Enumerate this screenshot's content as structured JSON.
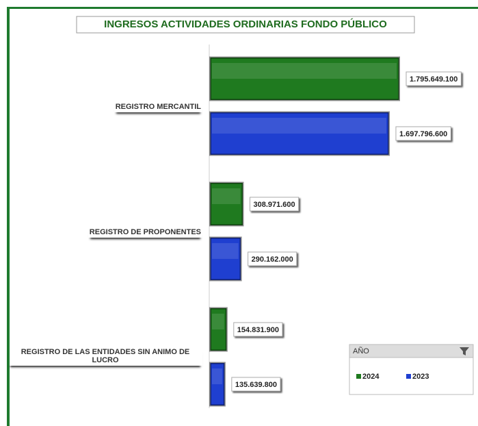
{
  "chart_data": {
    "type": "bar",
    "orientation": "horizontal",
    "title": "INGRESOS ACTIVIDADES ORDINARIAS FONDO PÚBLICO",
    "categories": [
      "REGISTRO MERCANTIL",
      "REGISTRO DE PROPONENTES",
      "REGISTRO DE LAS ENTIDADES SIN ANIMO DE LUCRO"
    ],
    "series": [
      {
        "name": "2024",
        "color": "#1f7a1f",
        "values": [
          1795649100,
          308971600,
          154831900
        ],
        "value_labels": [
          "1.795.649.100",
          "308.971.600",
          "154.831.900"
        ]
      },
      {
        "name": "2023",
        "color": "#1f3fd0",
        "values": [
          1697796600,
          290162000,
          135639800
        ],
        "value_labels": [
          "1.697.796.600",
          "290.162.000",
          "135.639.800"
        ]
      }
    ],
    "legend_title": "AÑO",
    "legend_position": "bottom-right"
  }
}
